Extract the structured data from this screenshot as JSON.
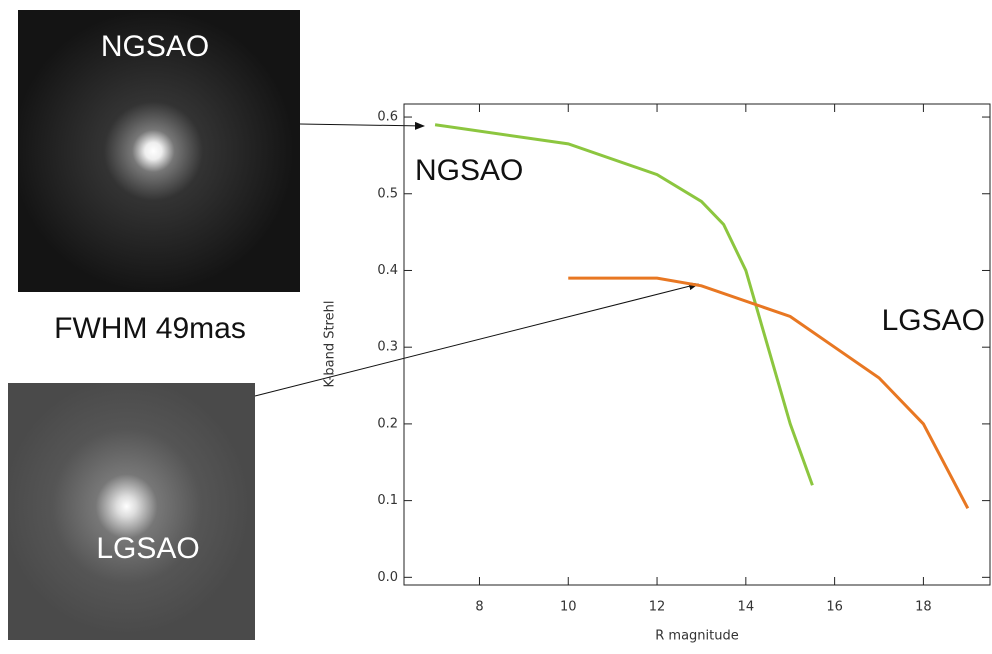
{
  "chart_data": {
    "type": "line",
    "xlabel": "R magnitude",
    "ylabel": "K-band Strehl",
    "xlim": [
      6.3,
      19.5
    ],
    "ylim": [
      -0.01,
      0.617
    ],
    "xticks": [
      8,
      10,
      12,
      14,
      16,
      18
    ],
    "yticks": [
      {
        "value": 0,
        "label": "0.0"
      },
      0.1,
      0.2,
      0.3,
      0.4,
      0.5,
      0.6
    ],
    "series": [
      {
        "name": "NGSAO",
        "color": "#8cc63f",
        "x": [
          7,
          10,
          12,
          13,
          13.5,
          14,
          14.5,
          15,
          15.5
        ],
        "values": [
          0.59,
          0.565,
          0.525,
          0.49,
          0.46,
          0.4,
          0.3,
          0.2,
          0.12
        ]
      },
      {
        "name": "LGSAO",
        "color": "#e87722",
        "x": [
          10,
          12,
          13,
          15,
          16,
          17,
          18,
          19
        ],
        "values": [
          0.39,
          0.39,
          0.38,
          0.34,
          0.3,
          0.26,
          0.2,
          0.09
        ]
      }
    ]
  },
  "images": [
    {
      "label": "NGSAO"
    },
    {
      "label": "LGSAO"
    }
  ],
  "caption": "FWHM 49mas"
}
